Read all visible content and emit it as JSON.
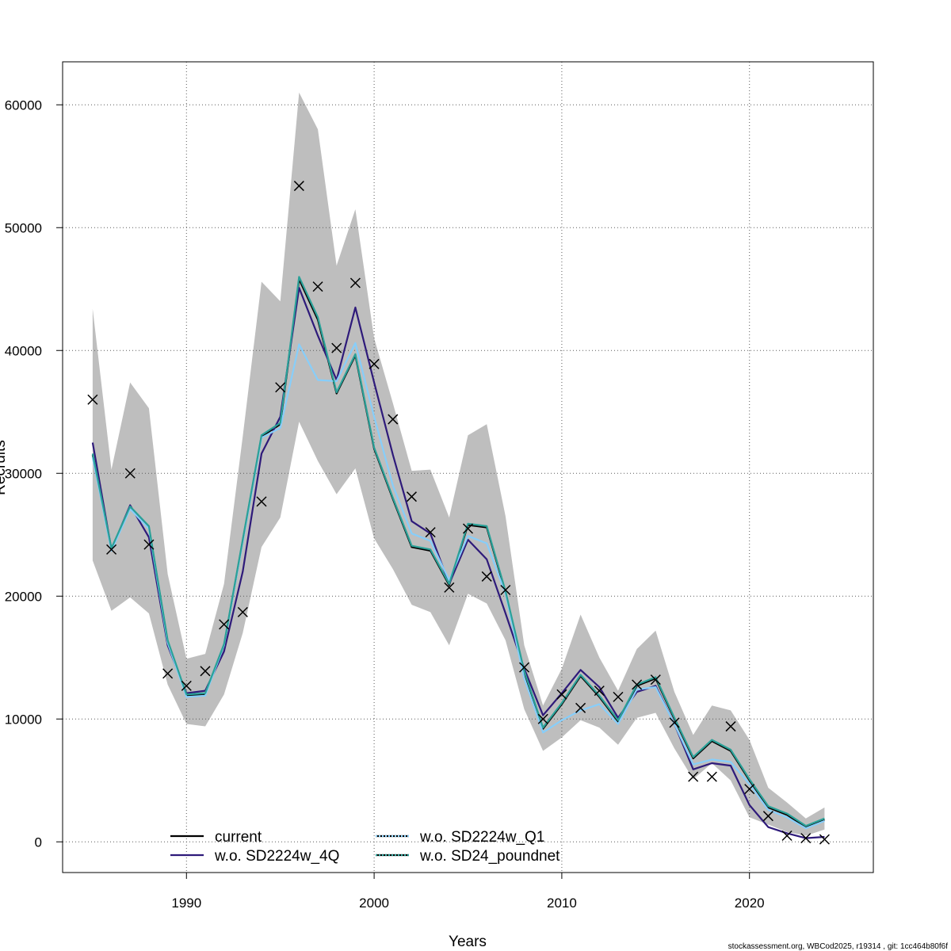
{
  "chart_data": {
    "type": "line",
    "xlabel": "Years",
    "ylabel": "Recruits",
    "xlim": [
      1983.4,
      2026.6
    ],
    "ylim": [
      -2500,
      63500
    ],
    "x_ticks": [
      1990,
      2000,
      2010,
      2020
    ],
    "y_ticks": [
      0,
      10000,
      20000,
      30000,
      40000,
      50000,
      60000
    ],
    "x_tick_labels": [
      "1990",
      "2000",
      "2010",
      "2020"
    ],
    "y_tick_labels": [
      "0",
      "10000",
      "20000",
      "30000",
      "40000",
      "50000",
      "60000"
    ],
    "grid": true,
    "legend_position": "bottom-left",
    "years": [
      1985,
      1986,
      1987,
      1988,
      1989,
      1990,
      1991,
      1992,
      1993,
      1994,
      1995,
      1996,
      1997,
      1998,
      1999,
      2000,
      2001,
      2002,
      2003,
      2004,
      2005,
      2006,
      2007,
      2008,
      2009,
      2010,
      2011,
      2012,
      2013,
      2014,
      2015,
      2016,
      2017,
      2018,
      2019,
      2020,
      2021,
      2022,
      2023,
      2024
    ],
    "ci_upper": [
      43400,
      30300,
      37400,
      35300,
      21800,
      14900,
      15300,
      21000,
      33000,
      45600,
      44000,
      61000,
      58000,
      46900,
      51500,
      41000,
      35700,
      30200,
      30300,
      26400,
      33100,
      34000,
      26500,
      16000,
      11100,
      14100,
      18500,
      15000,
      12300,
      15700,
      17200,
      12200,
      8700,
      11100,
      10700,
      8300,
      4400,
      3200,
      1900,
      2800
    ],
    "ci_lower": [
      22900,
      18800,
      19900,
      18600,
      12800,
      9600,
      9400,
      12000,
      17000,
      24000,
      26400,
      34200,
      31000,
      28300,
      30400,
      24700,
      22200,
      19300,
      18700,
      16000,
      20200,
      19400,
      16400,
      10800,
      7400,
      8500,
      9900,
      9300,
      7900,
      10100,
      10500,
      7600,
      5100,
      6400,
      5000,
      2000,
      1400,
      800,
      500,
      1000
    ],
    "series": [
      {
        "name": "current",
        "color": "#000000",
        "values": [
          31500,
          23800,
          27200,
          25600,
          16300,
          11900,
          12000,
          16000,
          24500,
          33000,
          34000,
          45800,
          42500,
          36500,
          39600,
          32000,
          27900,
          24000,
          23700,
          20900,
          25800,
          25600,
          20300,
          13800,
          9200,
          11200,
          13500,
          11800,
          9800,
          12700,
          13300,
          10000,
          6800,
          8200,
          7400,
          5000,
          2800,
          2200,
          1200,
          1800
        ],
        "dashed": false
      },
      {
        "name": "w.o. SD2224w_4Q",
        "color": "#2e1a7a",
        "values": [
          32500,
          23800,
          27400,
          24800,
          16000,
          12100,
          12300,
          15500,
          22000,
          31600,
          34600,
          45100,
          41200,
          37600,
          43500,
          37400,
          31500,
          26100,
          25100,
          21000,
          24600,
          23000,
          18600,
          14100,
          10300,
          12100,
          14000,
          12600,
          10100,
          12200,
          12700,
          9600,
          5900,
          6400,
          6200,
          3000,
          1200,
          700,
          300,
          400
        ],
        "dashed": false
      },
      {
        "name": "w.o. SD2224w_Q1",
        "color": "#87cefa",
        "values": [
          31300,
          23700,
          27100,
          25500,
          16200,
          11800,
          11900,
          16000,
          24400,
          32900,
          33700,
          40500,
          37600,
          37500,
          40600,
          34600,
          29000,
          25100,
          24500,
          21300,
          24900,
          24300,
          20200,
          13300,
          8900,
          9900,
          10700,
          11200,
          9600,
          12400,
          12600,
          9600,
          6300,
          6700,
          6500,
          4700,
          2600,
          2000,
          1100,
          1700
        ],
        "dashed": true
      },
      {
        "name": "w.o. SD24_poundnet",
        "color": "#2aa198",
        "values": [
          31600,
          23900,
          27300,
          25700,
          16400,
          12000,
          12100,
          16100,
          24600,
          33100,
          34100,
          46000,
          42700,
          36600,
          39700,
          32100,
          28000,
          24100,
          23800,
          21000,
          25900,
          25700,
          20400,
          13900,
          9300,
          11300,
          13600,
          11900,
          9900,
          12800,
          13400,
          10100,
          6900,
          8300,
          7500,
          5100,
          2900,
          2300,
          1300,
          1900
        ],
        "dashed": true
      }
    ],
    "observations": {
      "marker": "x",
      "values": [
        36000,
        23800,
        30000,
        24200,
        13700,
        12700,
        13900,
        17700,
        18700,
        27700,
        37000,
        53400,
        45200,
        40200,
        45500,
        38900,
        34400,
        28100,
        25200,
        20700,
        25500,
        21600,
        20500,
        14200,
        10000,
        12000,
        10900,
        12300,
        11800,
        12800,
        13200,
        9700,
        5300,
        5300,
        9400,
        4300,
        2100,
        500,
        300,
        200
      ]
    },
    "footer": "stockassessment.org, WBCod2025, r19314 , git: 1cc464b80f6f"
  },
  "colors": {
    "ci_band": "#bebebe",
    "grid": "#5a5a5a",
    "frame": "#000000"
  }
}
